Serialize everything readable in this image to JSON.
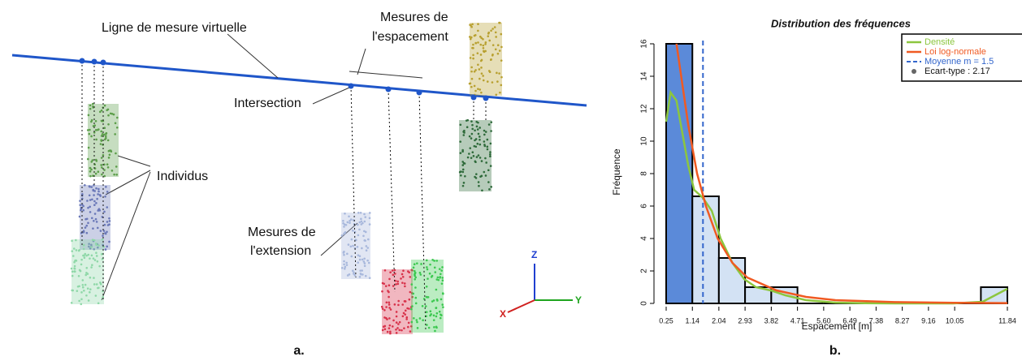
{
  "diagram": {
    "line_label": "Ligne de mesure virtuelle",
    "spacing_label": [
      "Mesures de",
      "l'espacement"
    ],
    "intersection_label": "Intersection",
    "individuals_label": "Individus",
    "extension_label": [
      "Mesures de",
      "l'extension"
    ],
    "axes": [
      "Z",
      "X",
      "Y"
    ]
  },
  "panel_labels": [
    "a.",
    "b."
  ],
  "chart_data": {
    "type": "histogram",
    "title": "Distribution des fréquences",
    "x_label": "Espacement [m]",
    "y_label": "Fréquence",
    "bins": [
      0.25,
      1.14,
      2.04,
      2.93,
      3.82,
      4.71,
      5.6,
      6.49,
      7.38,
      8.27,
      9.16,
      10.05,
      10.94,
      11.84
    ],
    "counts": [
      16,
      6.6,
      2.8,
      1,
      1,
      0,
      0,
      0,
      0,
      0,
      0,
      0,
      1
    ],
    "bar_colors": [
      "#5b8ad9",
      "#d3e2f4",
      "#d3e2f4",
      "#d3e2f4",
      "#d3e2f4",
      "#d3e2f4",
      "#d3e2f4",
      "#d3e2f4",
      "#d3e2f4",
      "#d3e2f4",
      "#d3e2f4",
      "#d3e2f4",
      "#d3e2f4"
    ],
    "xlim": [
      0,
      12.4
    ],
    "ylim": [
      0,
      16.5
    ],
    "xticks": [
      0.25,
      1.14,
      2.04,
      2.93,
      3.82,
      4.71,
      {
        "value": 5.6,
        "label": "5.60"
      },
      6.49,
      7.38,
      8.27,
      9.16,
      10.05,
      11.84
    ],
    "yticks": [
      0,
      2,
      4,
      6,
      8,
      10,
      12,
      14,
      16
    ],
    "series": [
      {
        "name": "Densité",
        "color": "#8cc63f",
        "x": [
          0.25,
          0.4,
          0.6,
          0.8,
          1.0,
          1.2,
          1.5,
          1.8,
          2.1,
          2.5,
          2.9,
          3.3,
          3.8,
          4.3,
          5,
          6,
          7,
          8,
          9,
          10,
          11,
          11.84
        ],
        "values": [
          11.2,
          13,
          12.5,
          10.5,
          8.5,
          7,
          6.5,
          5.7,
          4,
          2.5,
          1.5,
          1,
          0.8,
          0.5,
          0.2,
          0.05,
          0.01,
          0,
          0,
          0,
          0.1,
          0.9
        ]
      },
      {
        "name": "Loi log-normale",
        "color": "#f05a22",
        "x": [
          0.6,
          0.8,
          1,
          1.3,
          1.6,
          2,
          2.5,
          3,
          4,
          5,
          6,
          8,
          10,
          11.84
        ],
        "values": [
          16,
          13.5,
          11,
          8,
          6,
          4,
          2.5,
          1.6,
          0.8,
          0.4,
          0.2,
          0.08,
          0.04,
          0.02
        ]
      }
    ],
    "mean_line": {
      "value": 1.5,
      "label": "Moyenne m = 1.5",
      "color": "#3366cc"
    },
    "sd_label": "Ecart-type : 2.17",
    "legend_position": "upper right"
  }
}
